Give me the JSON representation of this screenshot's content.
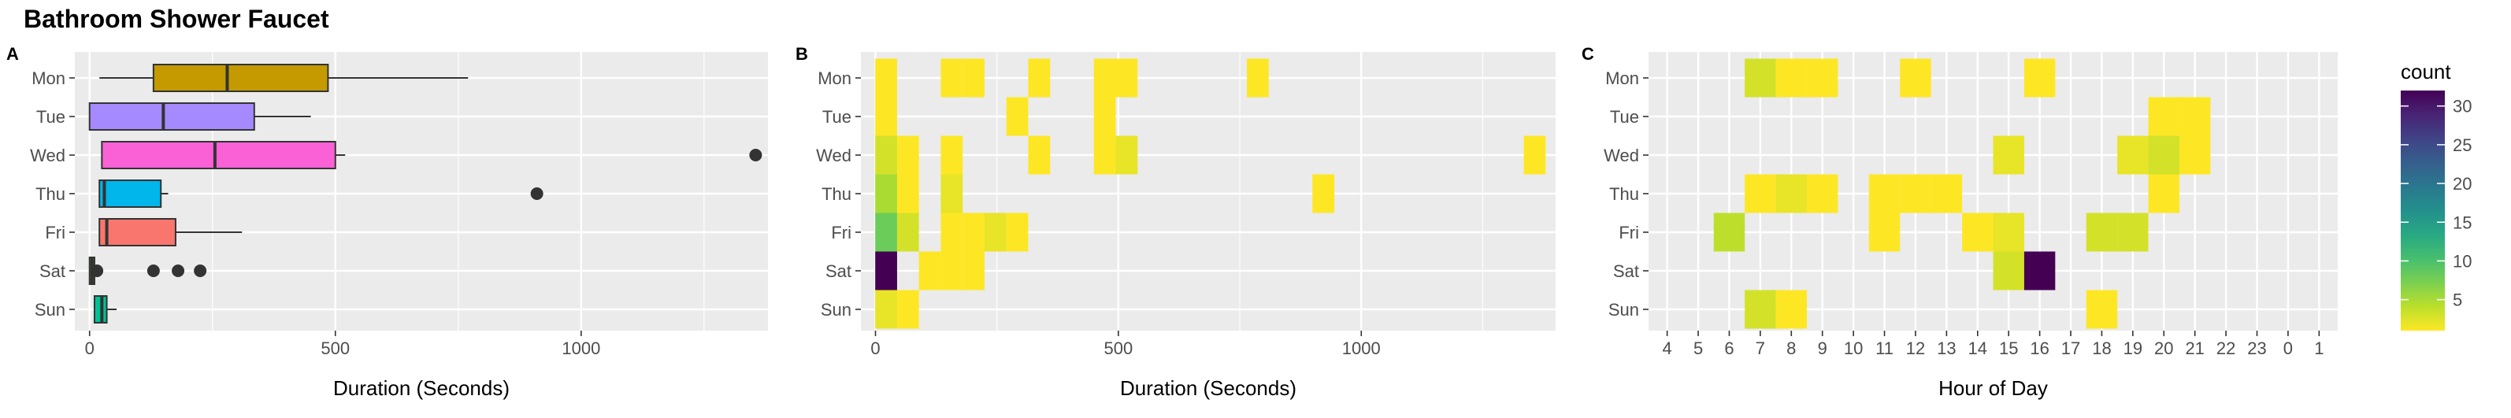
{
  "title": "Bathroom Shower Faucet",
  "colors": {
    "panel_bg": "#EBEBEB",
    "grid": "#FFFFFF",
    "text": "#4D4D4D",
    "title": "#000000",
    "Mon": "#C49A00",
    "Tue": "#A58AFF",
    "Wed": "#FB61D7",
    "Thu": "#00B6EB",
    "Fri": "#F8766D",
    "Sat": "#53B400",
    "Sun": "#00C094"
  },
  "legend": {
    "title": "count",
    "ticks": [
      5,
      10,
      15,
      20,
      25,
      30
    ],
    "min": 1,
    "max": 32,
    "placement": "right"
  },
  "chart_data": [
    {
      "panel": "A",
      "type": "boxplot",
      "xlabel": "Duration (Seconds)",
      "xlim": [
        -30,
        1380
      ],
      "xticks": [
        0,
        500,
        1000
      ],
      "categories": [
        "Mon",
        "Tue",
        "Wed",
        "Thu",
        "Fri",
        "Sat",
        "Sun"
      ],
      "series": [
        {
          "day": "Mon",
          "min": 20,
          "q1": 130,
          "median": 280,
          "q3": 485,
          "max": 770,
          "outliers": []
        },
        {
          "day": "Tue",
          "min": 0,
          "q1": 0,
          "median": 150,
          "q3": 335,
          "max": 450,
          "outliers": []
        },
        {
          "day": "Wed",
          "min": 25,
          "q1": 25,
          "median": 255,
          "q3": 500,
          "max": 520,
          "outliers": [
            1355
          ]
        },
        {
          "day": "Thu",
          "min": 20,
          "q1": 20,
          "median": 30,
          "q3": 145,
          "max": 160,
          "outliers": [
            910
          ]
        },
        {
          "day": "Fri",
          "min": 20,
          "q1": 20,
          "median": 35,
          "q3": 175,
          "max": 310,
          "outliers": []
        },
        {
          "day": "Sat",
          "min": 0,
          "q1": 0,
          "median": 5,
          "q3": 10,
          "max": 20,
          "outliers": [
            15,
            130,
            180,
            225
          ]
        },
        {
          "day": "Sun",
          "min": 10,
          "q1": 10,
          "median": 25,
          "q3": 35,
          "max": 55,
          "outliers": []
        }
      ]
    },
    {
      "panel": "B",
      "type": "heatmap",
      "xlabel": "Duration (Seconds)",
      "xlim": [
        -30,
        1400
      ],
      "xticks": [
        0,
        500,
        1000
      ],
      "categories": [
        "Mon",
        "Tue",
        "Wed",
        "Thu",
        "Fri",
        "Sat",
        "Sun"
      ],
      "bin_width": 45,
      "cells": [
        {
          "day": "Mon",
          "x": 22,
          "count": 1
        },
        {
          "day": "Mon",
          "x": 157,
          "count": 1
        },
        {
          "day": "Mon",
          "x": 202,
          "count": 1
        },
        {
          "day": "Mon",
          "x": 337,
          "count": 1
        },
        {
          "day": "Mon",
          "x": 472,
          "count": 1
        },
        {
          "day": "Mon",
          "x": 517,
          "count": 1
        },
        {
          "day": "Mon",
          "x": 787,
          "count": 1
        },
        {
          "day": "Tue",
          "x": 22,
          "count": 1
        },
        {
          "day": "Tue",
          "x": 292,
          "count": 1
        },
        {
          "day": "Tue",
          "x": 472,
          "count": 1
        },
        {
          "day": "Wed",
          "x": 22,
          "count": 3
        },
        {
          "day": "Wed",
          "x": 67,
          "count": 1
        },
        {
          "day": "Wed",
          "x": 157,
          "count": 1
        },
        {
          "day": "Wed",
          "x": 337,
          "count": 1
        },
        {
          "day": "Wed",
          "x": 472,
          "count": 1
        },
        {
          "day": "Wed",
          "x": 517,
          "count": 2
        },
        {
          "day": "Wed",
          "x": 1357,
          "count": 1
        },
        {
          "day": "Thu",
          "x": 22,
          "count": 5
        },
        {
          "day": "Thu",
          "x": 67,
          "count": 1
        },
        {
          "day": "Thu",
          "x": 157,
          "count": 2
        },
        {
          "day": "Thu",
          "x": 922,
          "count": 1
        },
        {
          "day": "Fri",
          "x": 22,
          "count": 8
        },
        {
          "day": "Fri",
          "x": 67,
          "count": 3
        },
        {
          "day": "Fri",
          "x": 157,
          "count": 1
        },
        {
          "day": "Fri",
          "x": 202,
          "count": 1
        },
        {
          "day": "Fri",
          "x": 247,
          "count": 2
        },
        {
          "day": "Fri",
          "x": 292,
          "count": 1
        },
        {
          "day": "Sat",
          "x": 22,
          "count": 32
        },
        {
          "day": "Sat",
          "x": 112,
          "count": 1
        },
        {
          "day": "Sat",
          "x": 157,
          "count": 1
        },
        {
          "day": "Sat",
          "x": 202,
          "count": 1
        },
        {
          "day": "Sun",
          "x": 22,
          "count": 2
        },
        {
          "day": "Sun",
          "x": 67,
          "count": 1
        }
      ]
    },
    {
      "panel": "C",
      "type": "heatmap",
      "xlabel": "Hour of Day",
      "categories": [
        "Mon",
        "Tue",
        "Wed",
        "Thu",
        "Fri",
        "Sat",
        "Sun"
      ],
      "hours": [
        "4",
        "5",
        "6",
        "7",
        "8",
        "9",
        "10",
        "11",
        "12",
        "13",
        "14",
        "15",
        "16",
        "17",
        "18",
        "19",
        "20",
        "21",
        "22",
        "23",
        "0",
        "1"
      ],
      "cells": [
        {
          "day": "Mon",
          "hour": "7",
          "count": 3
        },
        {
          "day": "Mon",
          "hour": "8",
          "count": 1
        },
        {
          "day": "Mon",
          "hour": "9",
          "count": 1
        },
        {
          "day": "Mon",
          "hour": "12",
          "count": 1
        },
        {
          "day": "Mon",
          "hour": "16",
          "count": 1
        },
        {
          "day": "Tue",
          "hour": "20",
          "count": 1
        },
        {
          "day": "Tue",
          "hour": "21",
          "count": 1
        },
        {
          "day": "Wed",
          "hour": "15",
          "count": 2
        },
        {
          "day": "Wed",
          "hour": "19",
          "count": 2
        },
        {
          "day": "Wed",
          "hour": "20",
          "count": 3
        },
        {
          "day": "Wed",
          "hour": "21",
          "count": 1
        },
        {
          "day": "Thu",
          "hour": "7",
          "count": 1
        },
        {
          "day": "Thu",
          "hour": "8",
          "count": 2
        },
        {
          "day": "Thu",
          "hour": "9",
          "count": 1
        },
        {
          "day": "Thu",
          "hour": "11",
          "count": 1
        },
        {
          "day": "Thu",
          "hour": "12",
          "count": 1
        },
        {
          "day": "Thu",
          "hour": "13",
          "count": 1
        },
        {
          "day": "Thu",
          "hour": "20",
          "count": 1
        },
        {
          "day": "Fri",
          "hour": "6",
          "count": 4
        },
        {
          "day": "Fri",
          "hour": "11",
          "count": 1
        },
        {
          "day": "Fri",
          "hour": "14",
          "count": 1
        },
        {
          "day": "Fri",
          "hour": "15",
          "count": 2
        },
        {
          "day": "Fri",
          "hour": "18",
          "count": 3
        },
        {
          "day": "Fri",
          "hour": "19",
          "count": 3
        },
        {
          "day": "Sat",
          "hour": "15",
          "count": 3
        },
        {
          "day": "Sat",
          "hour": "16",
          "count": 32
        },
        {
          "day": "Sun",
          "hour": "7",
          "count": 3
        },
        {
          "day": "Sun",
          "hour": "8",
          "count": 1
        },
        {
          "day": "Sun",
          "hour": "18",
          "count": 1
        }
      ]
    }
  ]
}
